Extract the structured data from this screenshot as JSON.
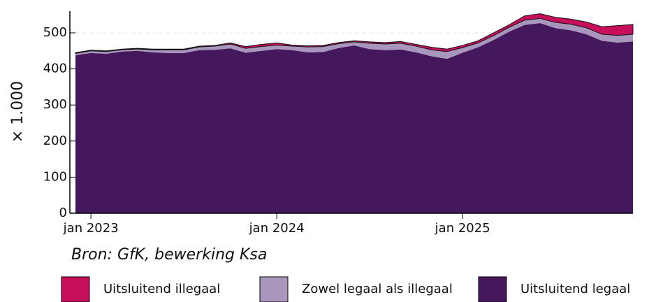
{
  "chart_data": {
    "type": "area",
    "stacked": true,
    "x": [
      "2022-12",
      "2023-01",
      "2023-02",
      "2023-03",
      "2023-04",
      "2023-05",
      "2023-06",
      "2023-07",
      "2023-08",
      "2023-09",
      "2023-10",
      "2023-11",
      "2023-12",
      "2024-01",
      "2024-02",
      "2024-03",
      "2024-04",
      "2024-05",
      "2024-06",
      "2024-07",
      "2024-08",
      "2024-09",
      "2024-10",
      "2024-11",
      "2024-12",
      "2025-01",
      "2025-02",
      "2025-03",
      "2025-04",
      "2025-05",
      "2025-06",
      "2025-07",
      "2025-08",
      "2025-09",
      "2025-10",
      "2025-11",
      "2025-12"
    ],
    "xlim": [
      "2022-12",
      "2025-12"
    ],
    "xticks": [
      {
        "value": "2023-01",
        "label": "jan 2023"
      },
      {
        "value": "2024-01",
        "label": "jan 2024"
      },
      {
        "value": "2025-01",
        "label": "jan 2025"
      }
    ],
    "ylim": [
      0,
      560
    ],
    "yticks": [
      0,
      100,
      200,
      300,
      400,
      500
    ],
    "grid": true,
    "ylabel": "× 1.000",
    "source": "Bron: GfK, bewerking Ksa",
    "series": [
      {
        "name": "Uitsluitend illegaal",
        "color": "#c70f5c",
        "values": [
          2,
          2,
          2,
          2,
          2,
          2,
          2,
          2,
          2,
          2,
          3,
          5,
          6,
          6,
          3,
          3,
          3,
          3,
          3,
          4,
          4,
          5,
          5,
          7,
          7,
          6,
          6,
          8,
          7,
          12,
          13,
          14,
          14,
          16,
          21,
          27,
          27
        ]
      },
      {
        "name": "Zowel legaal als illegaal",
        "color": "#a896bd",
        "values": [
          5,
          6,
          6,
          5,
          5,
          7,
          9,
          9,
          9,
          10,
          12,
          12,
          12,
          11,
          11,
          15,
          15,
          12,
          10,
          16,
          17,
          17,
          17,
          18,
          20,
          14,
          12,
          12,
          12,
          13,
          13,
          16,
          17,
          18,
          18,
          20,
          20
        ]
      },
      {
        "name": "Uitsluitend legaal",
        "color": "#45175d",
        "values": [
          438,
          444,
          442,
          448,
          450,
          446,
          444,
          444,
          452,
          453,
          457,
          445,
          450,
          455,
          452,
          446,
          447,
          458,
          465,
          455,
          452,
          454,
          446,
          435,
          428,
          445,
          460,
          480,
          503,
          522,
          527,
          513,
          507,
          496,
          478,
          473,
          476
        ]
      }
    ]
  }
}
